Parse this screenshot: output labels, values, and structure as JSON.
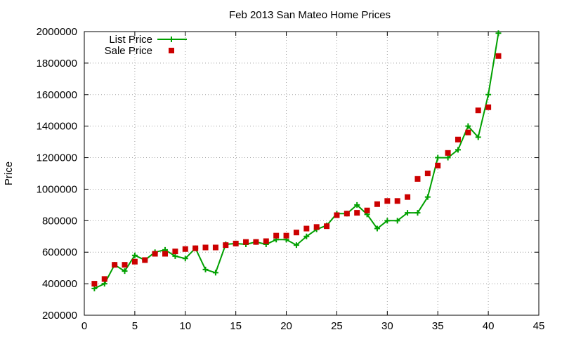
{
  "chart_data": {
    "type": "line",
    "title": "Feb 2013 San Mateo Home Prices",
    "xlabel": "",
    "ylabel": "Price",
    "xlim": [
      0,
      45
    ],
    "ylim": [
      200000,
      2000000
    ],
    "xticks": [
      0,
      5,
      10,
      15,
      20,
      25,
      30,
      35,
      40,
      45
    ],
    "yticks": [
      200000,
      400000,
      600000,
      800000,
      1000000,
      1200000,
      1400000,
      1600000,
      1800000,
      2000000
    ],
    "grid": true,
    "legend_position": "top-left",
    "series": [
      {
        "name": "List Price",
        "style": "line+cross",
        "color": "#00a000",
        "x": [
          1,
          2,
          3,
          4,
          5,
          6,
          7,
          8,
          9,
          10,
          11,
          12,
          13,
          14,
          15,
          16,
          17,
          18,
          19,
          20,
          21,
          22,
          23,
          24,
          25,
          26,
          27,
          28,
          29,
          30,
          31,
          32,
          33,
          34,
          35,
          36,
          37,
          38,
          39,
          40,
          41
        ],
        "y": [
          370000,
          400000,
          520000,
          480000,
          580000,
          550000,
          600000,
          615000,
          575000,
          560000,
          625000,
          490000,
          470000,
          650000,
          655000,
          650000,
          665000,
          650000,
          680000,
          680000,
          645000,
          700000,
          745000,
          770000,
          845000,
          845000,
          900000,
          840000,
          750000,
          800000,
          800000,
          850000,
          850000,
          950000,
          1200000,
          1200000,
          1250000,
          1400000,
          1330000,
          1600000,
          1990000
        ]
      },
      {
        "name": "Sale Price",
        "style": "square",
        "color": "#cc0000",
        "x": [
          1,
          2,
          3,
          4,
          5,
          6,
          7,
          8,
          9,
          10,
          11,
          12,
          13,
          14,
          15,
          16,
          17,
          18,
          19,
          20,
          21,
          22,
          23,
          24,
          25,
          26,
          27,
          28,
          29,
          30,
          31,
          32,
          33,
          34,
          35,
          36,
          37,
          38,
          39,
          40,
          41
        ],
        "y": [
          400000,
          430000,
          520000,
          520000,
          540000,
          550000,
          590000,
          590000,
          605000,
          620000,
          625000,
          630000,
          630000,
          645000,
          655000,
          665000,
          665000,
          670000,
          705000,
          705000,
          725000,
          750000,
          760000,
          765000,
          835000,
          845000,
          850000,
          865000,
          905000,
          925000,
          925000,
          950000,
          1065000,
          1100000,
          1150000,
          1230000,
          1315000,
          1360000,
          1500000,
          1520000,
          1845000
        ]
      }
    ]
  }
}
